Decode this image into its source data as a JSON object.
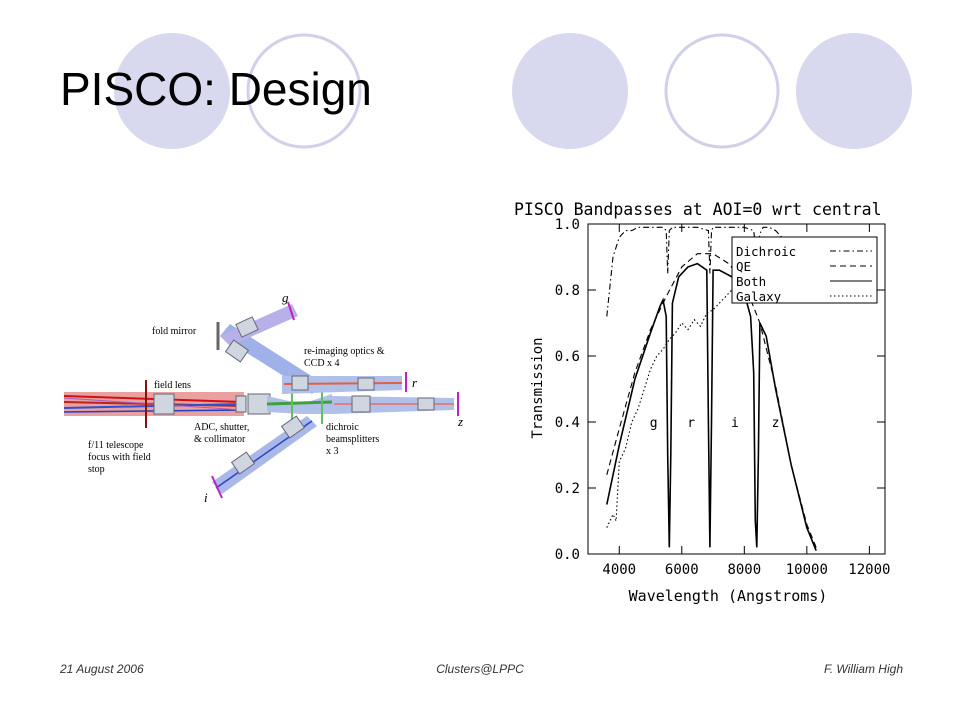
{
  "slide": {
    "title": "PISCO: Design",
    "footer": {
      "date": "21 August 2006",
      "event": "Clusters@LPPC",
      "author": "F. William High"
    },
    "decoration_colors": {
      "filled": "#d8d8ee",
      "ring": "#d0d0ea"
    }
  },
  "optics_diagram": {
    "labels": {
      "fold_mirror": "fold mirror",
      "field_lens": "field lens",
      "reimaging": "re-imaging optics &",
      "ccd": "CCD  x 4",
      "telescope_1": "f/11 telescope",
      "telescope_2": "focus with field",
      "telescope_3": "stop",
      "adc_1": "ADC, shutter,",
      "adc_2": "& collimator",
      "dichroic_1": "dichroic",
      "dichroic_2": "beamsplitters",
      "dichroic_3": "x 3",
      "band_g": "g",
      "band_r": "r",
      "band_i": "i",
      "band_z": "z"
    }
  },
  "chart_data": {
    "type": "line",
    "title": "PISCO Bandpasses at AOI=0 wrt central",
    "xlabel": "Wavelength (Angstroms)",
    "ylabel": "Transmission",
    "xlim": [
      3000,
      12500
    ],
    "ylim": [
      0,
      1.0
    ],
    "x_ticks": [
      4000,
      6000,
      8000,
      10000,
      12000
    ],
    "y_ticks": [
      0.0,
      0.2,
      0.4,
      0.6,
      0.8,
      1.0
    ],
    "x_tick_labels": [
      "4000",
      "6000",
      "8000",
      "10000",
      "12000"
    ],
    "y_tick_labels": [
      "0.0",
      "0.2",
      "0.4",
      "0.6",
      "0.8",
      "1.0"
    ],
    "legend_position": "top-right",
    "band_labels": [
      {
        "text": "g",
        "x": 5100,
        "y": 0.4
      },
      {
        "text": "r",
        "x": 6300,
        "y": 0.4
      },
      {
        "text": "i",
        "x": 7700,
        "y": 0.4
      },
      {
        "text": "z",
        "x": 9000,
        "y": 0.4
      }
    ],
    "series": [
      {
        "name": "Dichroic",
        "dash": "dashdot",
        "x": [
          3600,
          3800,
          4000,
          4200,
          4400,
          4600,
          4800,
          5000,
          5200,
          5400,
          5500,
          5550,
          5600,
          5700,
          5800,
          6000,
          6500,
          6850,
          6900,
          6950,
          7000,
          7200,
          7600,
          8000,
          8300,
          8400,
          8500,
          8600,
          8800,
          9000,
          9200
        ],
        "y": [
          0.72,
          0.9,
          0.96,
          0.98,
          0.98,
          0.99,
          0.99,
          0.99,
          0.99,
          0.99,
          0.98,
          0.85,
          0.98,
          0.99,
          0.99,
          0.99,
          0.99,
          0.98,
          0.85,
          0.98,
          0.99,
          0.99,
          0.99,
          0.99,
          0.98,
          0.9,
          0.97,
          0.99,
          0.99,
          0.98,
          0.96
        ]
      },
      {
        "name": "QE",
        "dash": "dashed",
        "x": [
          3600,
          4000,
          4500,
          5000,
          5500,
          6000,
          6500,
          7000,
          7500,
          8000,
          8500,
          9000,
          9500,
          10000,
          10300
        ],
        "y": [
          0.24,
          0.38,
          0.55,
          0.68,
          0.78,
          0.87,
          0.91,
          0.91,
          0.88,
          0.82,
          0.7,
          0.51,
          0.27,
          0.09,
          0.02
        ]
      },
      {
        "name": "Both",
        "dash": "solid",
        "x": [
          3600,
          4000,
          4500,
          5000,
          5300,
          5400,
          5500,
          5550,
          5600,
          5650,
          5700,
          5900,
          6200,
          6500,
          6800,
          6850,
          6900,
          6950,
          7000,
          7200,
          7600,
          8000,
          8200,
          8300,
          8350,
          8400,
          8450,
          8500,
          8700,
          9000,
          9500,
          10000,
          10300
        ],
        "y": [
          0.15,
          0.33,
          0.53,
          0.67,
          0.75,
          0.77,
          0.72,
          0.3,
          0.02,
          0.3,
          0.76,
          0.84,
          0.87,
          0.88,
          0.86,
          0.4,
          0.02,
          0.4,
          0.86,
          0.86,
          0.84,
          0.79,
          0.72,
          0.55,
          0.1,
          0.02,
          0.3,
          0.7,
          0.66,
          0.5,
          0.27,
          0.08,
          0.01
        ]
      },
      {
        "name": "Galaxy",
        "dash": "dotted",
        "x": [
          3600,
          3800,
          3900,
          4000,
          4200,
          4400,
          4600,
          4800,
          5000,
          5200,
          5400,
          5600,
          5800,
          6000,
          6200,
          6400,
          6600,
          6800,
          7000,
          7200,
          7400,
          7600,
          7800,
          8000,
          8200,
          8400,
          8600,
          8800,
          9000,
          9200
        ],
        "y": [
          0.08,
          0.12,
          0.1,
          0.28,
          0.32,
          0.4,
          0.44,
          0.5,
          0.56,
          0.6,
          0.62,
          0.65,
          0.67,
          0.7,
          0.68,
          0.71,
          0.69,
          0.73,
          0.74,
          0.76,
          0.78,
          0.8,
          0.82,
          0.83,
          0.86,
          0.87,
          0.9,
          0.92,
          0.93,
          0.95
        ]
      }
    ]
  }
}
